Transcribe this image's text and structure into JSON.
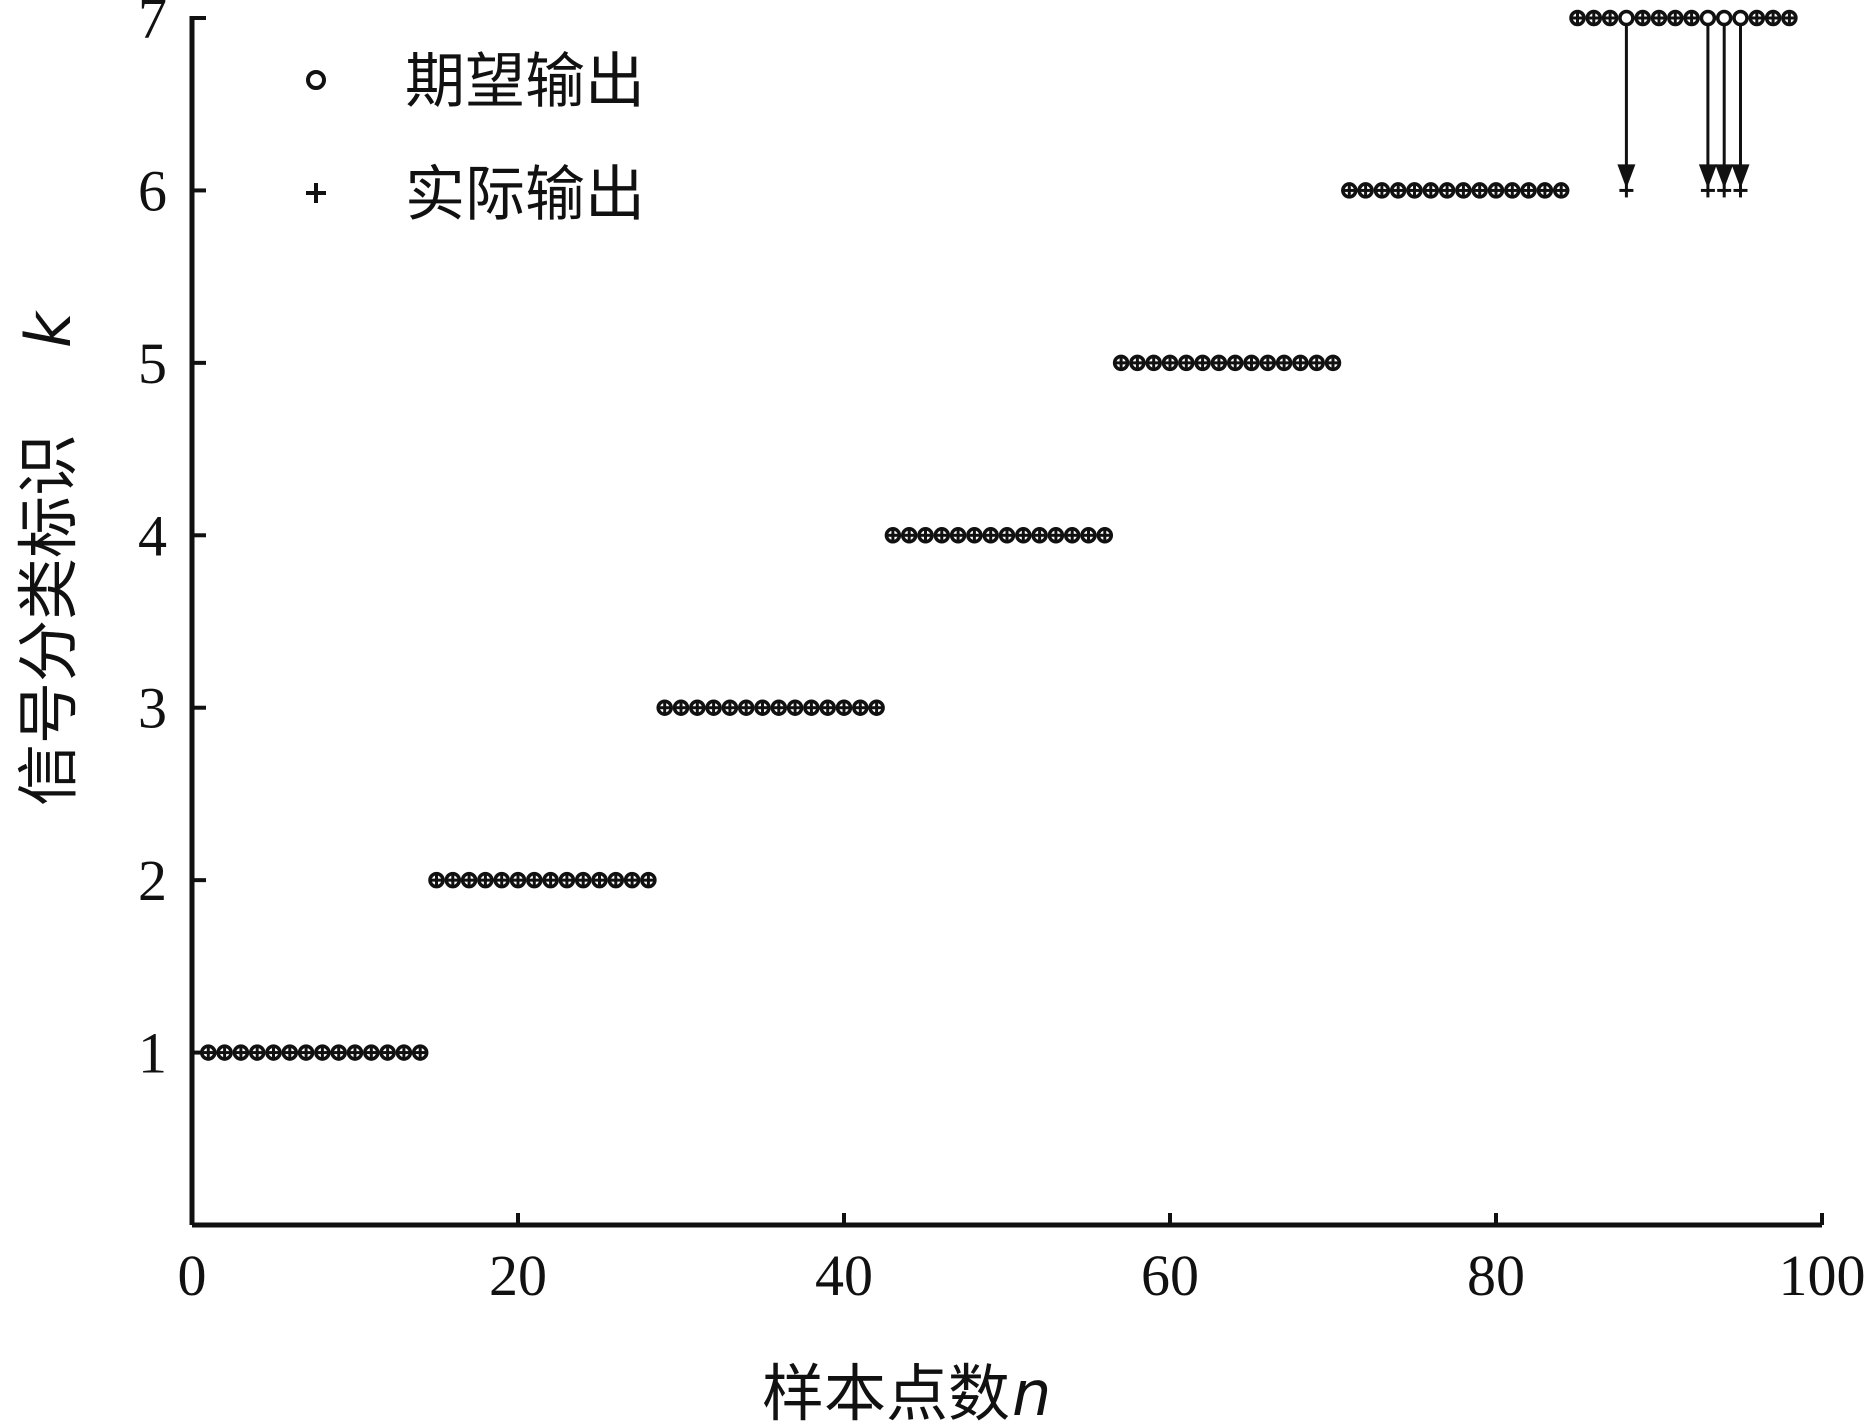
{
  "chart_data": {
    "type": "scatter",
    "xlabel": "样本点数",
    "xlabel_var": "n",
    "ylabel": "信号分类标识",
    "ylabel_var": "k",
    "xlim": [
      0,
      100
    ],
    "ylim": [
      0,
      7
    ],
    "xticks": [
      0,
      20,
      40,
      60,
      80,
      100
    ],
    "yticks": [
      1,
      2,
      3,
      4,
      5,
      6,
      7
    ],
    "grid": false,
    "legend_position": "top-left",
    "series": [
      {
        "name": "期望输出",
        "marker": "circle",
        "x": [
          1,
          2,
          3,
          4,
          5,
          6,
          7,
          8,
          9,
          10,
          11,
          12,
          13,
          14,
          15,
          16,
          17,
          18,
          19,
          20,
          21,
          22,
          23,
          24,
          25,
          26,
          27,
          28,
          29,
          30,
          31,
          32,
          33,
          34,
          35,
          36,
          37,
          38,
          39,
          40,
          41,
          42,
          43,
          44,
          45,
          46,
          47,
          48,
          49,
          50,
          51,
          52,
          53,
          54,
          55,
          56,
          57,
          58,
          59,
          60,
          61,
          62,
          63,
          64,
          65,
          66,
          67,
          68,
          69,
          70,
          71,
          72,
          73,
          74,
          75,
          76,
          77,
          78,
          79,
          80,
          81,
          82,
          83,
          84,
          85,
          86,
          87,
          88,
          89,
          90,
          91,
          92,
          93,
          94,
          95,
          96,
          97,
          98
        ],
        "y": [
          1,
          1,
          1,
          1,
          1,
          1,
          1,
          1,
          1,
          1,
          1,
          1,
          1,
          1,
          2,
          2,
          2,
          2,
          2,
          2,
          2,
          2,
          2,
          2,
          2,
          2,
          2,
          2,
          3,
          3,
          3,
          3,
          3,
          3,
          3,
          3,
          3,
          3,
          3,
          3,
          3,
          3,
          4,
          4,
          4,
          4,
          4,
          4,
          4,
          4,
          4,
          4,
          4,
          4,
          4,
          4,
          5,
          5,
          5,
          5,
          5,
          5,
          5,
          5,
          5,
          5,
          5,
          5,
          5,
          5,
          6,
          6,
          6,
          6,
          6,
          6,
          6,
          6,
          6,
          6,
          6,
          6,
          6,
          6,
          7,
          7,
          7,
          7,
          7,
          7,
          7,
          7,
          7,
          7,
          7,
          7,
          7,
          7
        ]
      },
      {
        "name": "实际输出",
        "marker": "plus",
        "x": [
          1,
          2,
          3,
          4,
          5,
          6,
          7,
          8,
          9,
          10,
          11,
          12,
          13,
          14,
          15,
          16,
          17,
          18,
          19,
          20,
          21,
          22,
          23,
          24,
          25,
          26,
          27,
          28,
          29,
          30,
          31,
          32,
          33,
          34,
          35,
          36,
          37,
          38,
          39,
          40,
          41,
          42,
          43,
          44,
          45,
          46,
          47,
          48,
          49,
          50,
          51,
          52,
          53,
          54,
          55,
          56,
          57,
          58,
          59,
          60,
          61,
          62,
          63,
          64,
          65,
          66,
          67,
          68,
          69,
          70,
          71,
          72,
          73,
          74,
          75,
          76,
          77,
          78,
          79,
          80,
          81,
          82,
          83,
          84,
          85,
          86,
          87,
          88,
          89,
          90,
          91,
          92,
          93,
          94,
          95,
          96,
          97,
          98
        ],
        "y": [
          1,
          1,
          1,
          1,
          1,
          1,
          1,
          1,
          1,
          1,
          1,
          1,
          1,
          1,
          2,
          2,
          2,
          2,
          2,
          2,
          2,
          2,
          2,
          2,
          2,
          2,
          2,
          2,
          3,
          3,
          3,
          3,
          3,
          3,
          3,
          3,
          3,
          3,
          3,
          3,
          3,
          3,
          4,
          4,
          4,
          4,
          4,
          4,
          4,
          4,
          4,
          4,
          4,
          4,
          4,
          4,
          5,
          5,
          5,
          5,
          5,
          5,
          5,
          5,
          5,
          5,
          5,
          5,
          5,
          5,
          6,
          6,
          6,
          6,
          6,
          6,
          6,
          6,
          6,
          6,
          6,
          6,
          6,
          6,
          7,
          7,
          7,
          6,
          7,
          7,
          7,
          7,
          6,
          6,
          6,
          7,
          7,
          7
        ]
      }
    ],
    "error_arrows": [
      {
        "x": 88,
        "from": 7,
        "to": 6
      },
      {
        "x": 93,
        "from": 7,
        "to": 6
      },
      {
        "x": 94,
        "from": 7,
        "to": 6
      },
      {
        "x": 95,
        "from": 7,
        "to": 6
      }
    ]
  }
}
